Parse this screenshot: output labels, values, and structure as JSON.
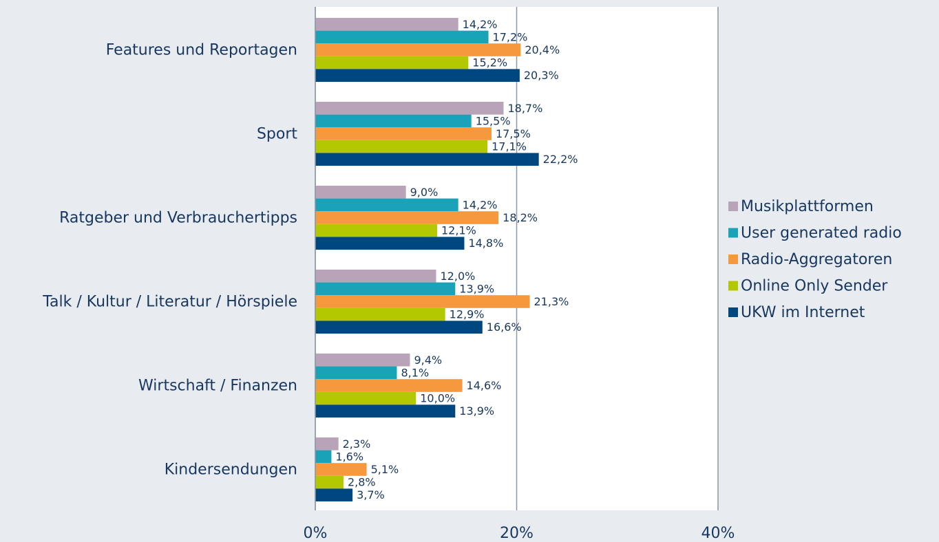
{
  "chart_data": {
    "type": "hbar",
    "categories": [
      "Features und Reportagen",
      "Sport",
      "Ratgeber und Verbrauchertipps",
      "Talk / Kultur / Literatur / Hörspiele",
      "Wirtschaft / Finanzen",
      "Kindersendungen"
    ],
    "series": [
      {
        "name": "Musikplattformen",
        "color": "#b9a3b9",
        "values": [
          14.2,
          18.7,
          9.0,
          12.0,
          9.4,
          2.3
        ],
        "value_labels": [
          "14,2%",
          "18,7%",
          "9,0%",
          "12,0%",
          "9,4%",
          "2,3%"
        ]
      },
      {
        "name": "User generated radio",
        "color": "#1aa3b8",
        "values": [
          17.2,
          15.5,
          14.2,
          13.9,
          8.1,
          1.6
        ],
        "value_labels": [
          "17,2%",
          "15,5%",
          "14,2%",
          "13,9%",
          "8,1%",
          "1,6%"
        ]
      },
      {
        "name": "Radio-Aggregatoren",
        "color": "#f5983e",
        "values": [
          20.4,
          17.5,
          18.2,
          21.3,
          14.6,
          5.1
        ],
        "value_labels": [
          "20,4%",
          "17,5%",
          "18,2%",
          "21,3%",
          "14,6%",
          "5,1%"
        ]
      },
      {
        "name": "Online Only Sender",
        "color": "#b3c800",
        "values": [
          15.2,
          17.1,
          12.1,
          12.9,
          10.0,
          2.8
        ],
        "value_labels": [
          "15,2%",
          "17,1%",
          "12,1%",
          "12,9%",
          "10,0%",
          "2,8%"
        ]
      },
      {
        "name": "UKW im Internet",
        "color": "#00467f",
        "values": [
          20.3,
          22.2,
          14.8,
          16.6,
          13.9,
          3.7
        ],
        "value_labels": [
          "20,3%",
          "22,2%",
          "14,8%",
          "16,6%",
          "13,9%",
          "3,7%"
        ]
      }
    ],
    "xlim": [
      0,
      40
    ],
    "xticks": [
      {
        "value": 0,
        "label": "0%"
      },
      {
        "value": 20,
        "label": "20%"
      },
      {
        "value": 40,
        "label": "40%"
      }
    ],
    "grid": true,
    "legend": "right"
  }
}
